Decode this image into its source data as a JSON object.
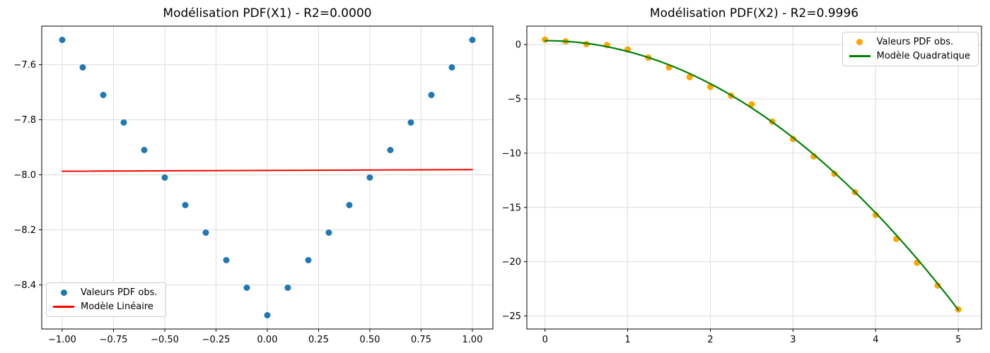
{
  "figure": {
    "background": "#ffffff",
    "grid_color": "#dcdcdc",
    "spine_color": "#000000"
  },
  "chart_data": [
    {
      "type": "scatter",
      "title": "Modélisation PDF(X1) - R2=0.0000",
      "xlabel": "",
      "ylabel": "",
      "xlim": [
        -1.1,
        1.1
      ],
      "ylim": [
        -8.56,
        -7.46
      ],
      "grid": true,
      "legend_position": "lower left",
      "xticks": {
        "values": [
          -1.0,
          -0.75,
          -0.5,
          -0.25,
          0.0,
          0.25,
          0.5,
          0.75,
          1.0
        ],
        "labels": [
          "−1.00",
          "−0.75",
          "−0.50",
          "−0.25",
          "0.00",
          "0.25",
          "0.50",
          "0.75",
          "1.00"
        ]
      },
      "yticks": {
        "values": [
          -8.4,
          -8.2,
          -8.0,
          -7.8,
          -7.6
        ],
        "labels": [
          "−8.4",
          "−8.2",
          "−8.0",
          "−7.8",
          "−7.6"
        ]
      },
      "series": [
        {
          "name": "Valeurs PDF obs.",
          "kind": "scatter",
          "color": "#1f77b4",
          "x": [
            -1.0,
            -0.9,
            -0.8,
            -0.7,
            -0.6,
            -0.5,
            -0.4,
            -0.3,
            -0.2,
            -0.1,
            0.0,
            0.1,
            0.2,
            0.3,
            0.4,
            0.5,
            0.6,
            0.7,
            0.8,
            0.9,
            1.0
          ],
          "y": [
            -7.51,
            -7.61,
            -7.71,
            -7.81,
            -7.91,
            -8.01,
            -8.11,
            -8.21,
            -8.31,
            -8.41,
            -8.51,
            -8.41,
            -8.31,
            -8.21,
            -8.11,
            -8.01,
            -7.91,
            -7.81,
            -7.71,
            -7.61,
            -7.51
          ]
        },
        {
          "name": "Modèle Linéaire",
          "kind": "line",
          "color": "#ff0000",
          "x": [
            -1.0,
            1.0
          ],
          "y": [
            -7.987,
            -7.981
          ]
        }
      ]
    },
    {
      "type": "scatter",
      "title": "Modélisation PDF(X2) - R2=0.9996",
      "xlabel": "",
      "ylabel": "",
      "xlim": [
        -0.22,
        5.28
      ],
      "ylim": [
        -26.2,
        1.7
      ],
      "grid": true,
      "legend_position": "upper right",
      "xticks": {
        "values": [
          0,
          1,
          2,
          3,
          4,
          5
        ],
        "labels": [
          "0",
          "1",
          "2",
          "3",
          "4",
          "5"
        ]
      },
      "yticks": {
        "values": [
          -25,
          -20,
          -15,
          -10,
          -5,
          0
        ],
        "labels": [
          "−25",
          "−20",
          "−15",
          "−10",
          "−5",
          "0"
        ]
      },
      "series": [
        {
          "name": "Valeurs PDF obs.",
          "kind": "scatter",
          "color": "#ffa500",
          "x": [
            0.0,
            0.25,
            0.5,
            0.75,
            1.0,
            1.25,
            1.5,
            1.75,
            2.0,
            2.25,
            2.5,
            2.75,
            3.0,
            3.25,
            3.5,
            3.75,
            4.0,
            4.25,
            4.5,
            4.75,
            5.0
          ],
          "y": [
            0.45,
            0.3,
            0.05,
            -0.05,
            -0.45,
            -1.2,
            -2.1,
            -3.0,
            -3.9,
            -4.7,
            -5.5,
            -7.1,
            -8.7,
            -10.3,
            -11.9,
            -13.6,
            -15.7,
            -17.9,
            -20.1,
            -22.2,
            -24.4
          ]
        },
        {
          "name": "Modèle Quadratique",
          "kind": "curve",
          "color": "#008000",
          "coeffs": [
            0.36,
            0.0,
            -0.992
          ],
          "x_range": [
            0.0,
            5.0
          ]
        }
      ]
    }
  ]
}
